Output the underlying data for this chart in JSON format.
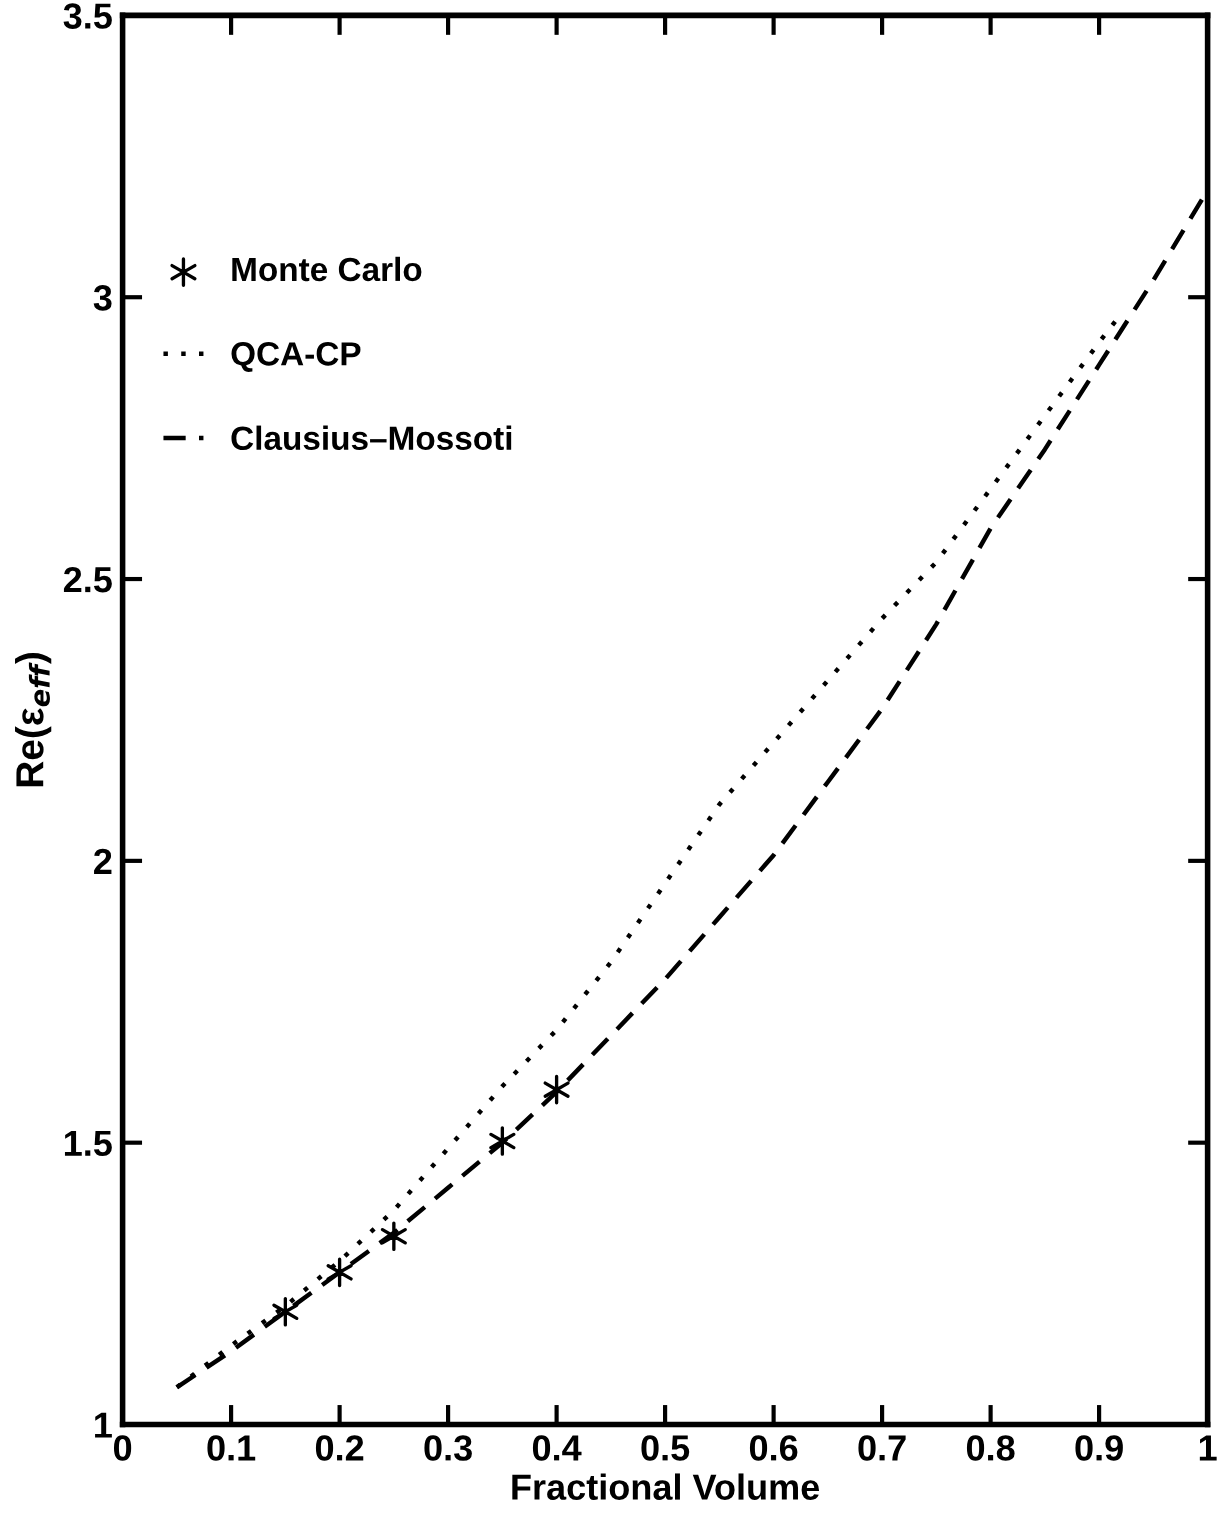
{
  "chart_data": {
    "type": "line",
    "xlabel": "Fractional Volume",
    "ylabel": "Re(ε$_{eff}$)",
    "xlim": [
      0,
      1
    ],
    "ylim": [
      1,
      3.5
    ],
    "xticks": [
      0,
      0.1,
      0.2,
      0.3,
      0.4,
      0.5,
      0.6,
      0.7,
      0.8,
      0.9,
      1
    ],
    "yticks": [
      1,
      1.5,
      2,
      2.5,
      3,
      3.5
    ],
    "grid": false,
    "legend": "top left",
    "series": [
      {
        "name": "Monte Carlo",
        "type": "scatter",
        "marker": "cross",
        "color": "#000000",
        "x": [
          0.15,
          0.2,
          0.25,
          0.35,
          0.4
        ],
        "values": [
          1.2,
          1.27,
          1.334,
          1.503,
          1.594
        ]
      },
      {
        "name": "QCA-CP",
        "line_style": "dotted",
        "color": "#000000",
        "x": [
          0.05,
          0.1,
          0.15,
          0.2,
          0.25,
          0.3,
          0.35,
          0.4,
          0.45,
          0.5,
          0.55,
          0.6,
          0.65,
          0.7,
          0.75,
          0.8,
          0.85,
          0.9,
          0.92
        ],
        "values": [
          1.066,
          1.14,
          1.21,
          1.29,
          1.38,
          1.49,
          1.6,
          1.7,
          1.82,
          1.96,
          2.1,
          2.21,
          2.32,
          2.43,
          2.53,
          2.66,
          2.79,
          2.92,
          2.97
        ]
      },
      {
        "name": "Clausius–Mossoti",
        "line_style": "dashed",
        "color": "#000000",
        "x": [
          0.05,
          0.1,
          0.15,
          0.2,
          0.25,
          0.3,
          0.35,
          0.4,
          0.45,
          0.5,
          0.55,
          0.6,
          0.65,
          0.7,
          0.75,
          0.8,
          0.85,
          0.9,
          0.95,
          1.0
        ],
        "values": [
          1.066,
          1.13,
          1.2,
          1.27,
          1.34,
          1.42,
          1.5,
          1.59,
          1.69,
          1.79,
          1.9,
          2.01,
          2.14,
          2.27,
          2.42,
          2.59,
          2.73,
          2.88,
          3.03,
          3.19
        ]
      }
    ]
  }
}
